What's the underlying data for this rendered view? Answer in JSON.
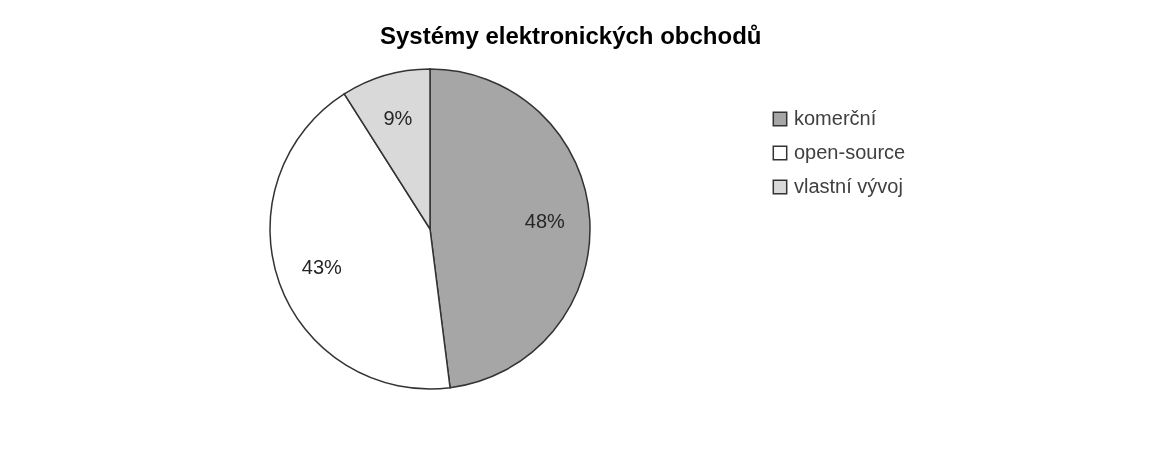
{
  "chart_data": {
    "type": "pie",
    "title": "Systémy elektronických obchodů",
    "categories": [
      "komerční",
      "open-source",
      "vlastní vývoj"
    ],
    "values": [
      48,
      43,
      9
    ],
    "colors": [
      "#a6a6a6",
      "#ffffff",
      "#d9d9d9"
    ],
    "value_labels": [
      "48%",
      "43%",
      "9%"
    ],
    "legend": "right"
  }
}
